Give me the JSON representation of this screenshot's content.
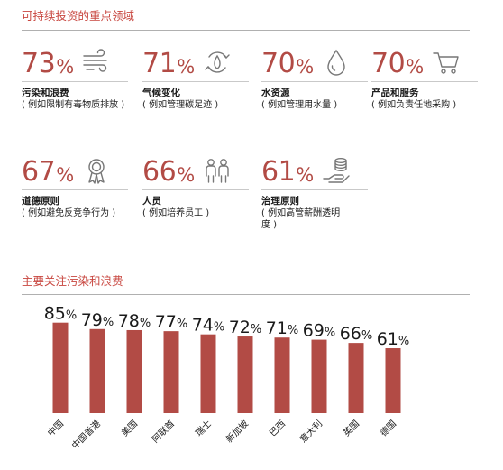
{
  "focus_section": {
    "title": "可持续投资的重点领域",
    "items": [
      {
        "value": "73",
        "unit": "%",
        "name": "污染和浪费",
        "desc": "( 例如限制有毒物质排放 )",
        "icon": "wind-icon"
      },
      {
        "value": "71",
        "unit": "%",
        "name": "气候变化",
        "desc": "( 例如管理碳足迹 )",
        "icon": "recycle-icon"
      },
      {
        "value": "70",
        "unit": "%",
        "name": "水资源",
        "desc": "( 例如管理用水量 )",
        "icon": "water-drop-icon"
      },
      {
        "value": "70",
        "unit": "%",
        "name": "产品和服务",
        "desc": "( 例如负责任地采购 )",
        "icon": "shopping-cart-icon"
      },
      {
        "value": "67",
        "unit": "%",
        "name": "道德原则",
        "desc": "( 例如避免反竞争行为 )",
        "icon": "award-ribbon-icon"
      },
      {
        "value": "66",
        "unit": "%",
        "name": "人员",
        "desc": "( 例如培养员工 )",
        "icon": "people-icon"
      },
      {
        "value": "61",
        "unit": "%",
        "name": "治理原则",
        "desc": "( 例如高管薪酬透明度 )",
        "icon": "coins-hand-icon"
      }
    ]
  },
  "chart_section": {
    "title": "主要关注污染和浪费"
  },
  "chart_data": {
    "type": "bar",
    "title": "主要关注污染和浪费",
    "categories": [
      "中国",
      "中国香港",
      "美国",
      "阿联酋",
      "瑞士",
      "新加坡",
      "巴西",
      "意大利",
      "英国",
      "德国"
    ],
    "values": [
      85,
      79,
      78,
      77,
      74,
      72,
      71,
      69,
      66,
      61
    ],
    "value_unit": "%",
    "bar_color": "#b24b45",
    "grid": false,
    "legend": "none"
  },
  "colors": {
    "accent": "#c8463f",
    "value": "#b24b45",
    "icon": "#777777"
  }
}
